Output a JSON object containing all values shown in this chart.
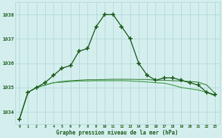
{
  "title": "Graphe pression niveau de la mer (hPa)",
  "background_color": "#d4eeee",
  "grid_color": "#aad4d4",
  "line_color_dark": "#1a5c1a",
  "line_color_mid": "#2e7a2e",
  "line_color_light": "#3a963a",
  "label_color": "#1a5c1a",
  "hours": [
    0,
    1,
    2,
    3,
    4,
    5,
    6,
    7,
    8,
    9,
    10,
    11,
    12,
    13,
    14,
    15,
    16,
    17,
    18,
    19,
    20,
    21,
    22,
    23
  ],
  "series_main": [
    1033.7,
    1034.8,
    1035.0,
    1035.2,
    1035.5,
    1035.8,
    1035.9,
    1036.5,
    1036.6,
    1037.5,
    1038.0,
    1038.0,
    1037.5,
    1037.0,
    1036.0,
    1035.5,
    1035.3,
    1035.4,
    1035.4,
    1035.3,
    1035.2,
    1035.1,
    1034.8,
    1034.7
  ],
  "series_flat1": [
    1033.7,
    1034.8,
    1035.0,
    1035.1,
    1035.2,
    1035.25,
    1035.28,
    1035.3,
    1035.32,
    1035.32,
    1035.33,
    1035.34,
    1035.34,
    1035.34,
    1035.33,
    1035.33,
    1035.3,
    1035.3,
    1035.28,
    1035.27,
    1035.25,
    1035.22,
    1035.1,
    1034.75
  ],
  "series_flat2": [
    1033.7,
    1034.8,
    1035.0,
    1035.1,
    1035.2,
    1035.22,
    1035.25,
    1035.27,
    1035.27,
    1035.28,
    1035.28,
    1035.28,
    1035.28,
    1035.27,
    1035.25,
    1035.23,
    1035.2,
    1035.18,
    1035.1,
    1035.0,
    1034.95,
    1034.9,
    1034.8,
    1034.65
  ],
  "ylim": [
    1033.5,
    1038.5
  ],
  "yticks": [
    1034,
    1035,
    1036,
    1037,
    1038
  ],
  "xlim": [
    -0.5,
    23.5
  ]
}
